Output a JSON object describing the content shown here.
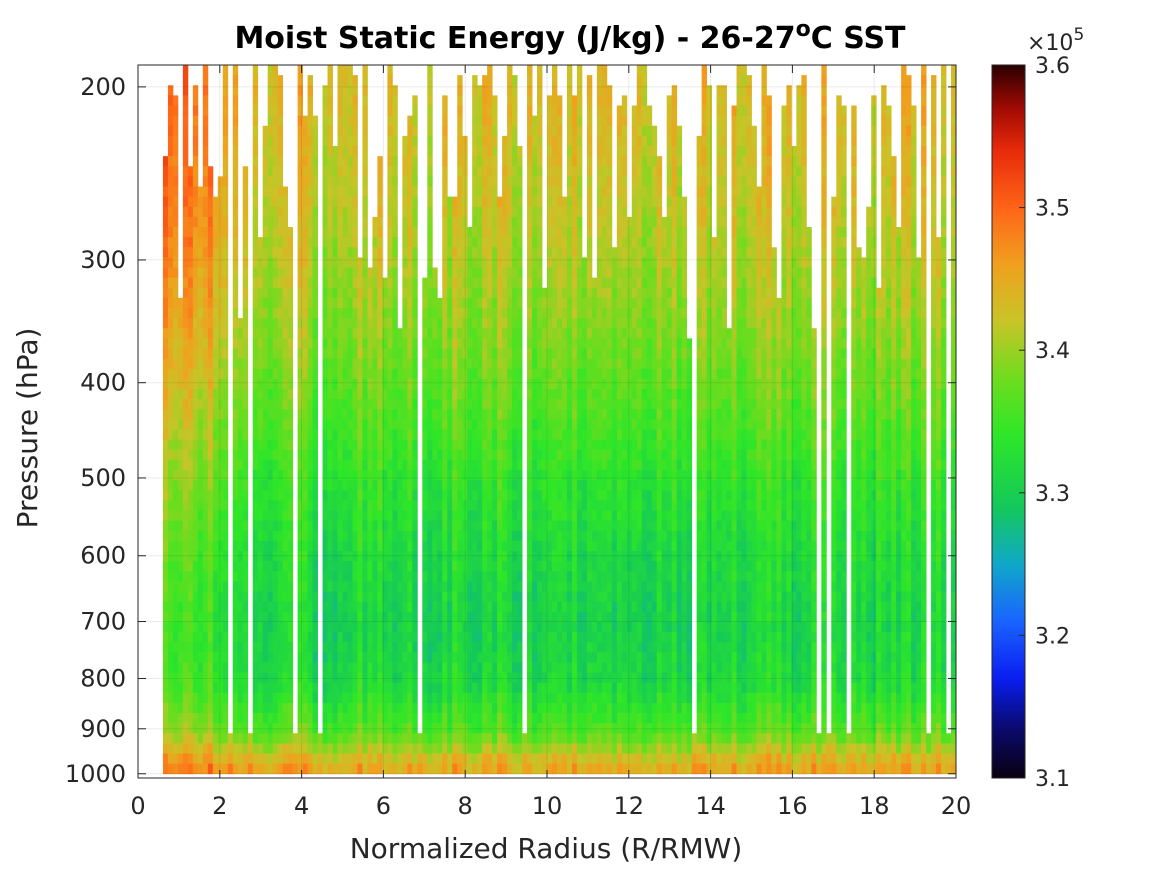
{
  "chart_data": {
    "type": "heatmap",
    "title": "Moist Static Energy (J/kg) - 26-27",
    "title_superscript": "o",
    "title_suffix": "C SST",
    "xlabel": "Normalized Radius (R/RMW)",
    "ylabel": "Pressure (hPa)",
    "xlim": [
      0,
      20
    ],
    "ylim": [
      190,
      1010
    ],
    "y_scale": "log",
    "y_reversed": true,
    "x_ticks": [
      0,
      2,
      4,
      6,
      8,
      10,
      12,
      14,
      16,
      18,
      20
    ],
    "y_ticks": [
      200,
      300,
      400,
      500,
      600,
      700,
      800,
      900,
      1000
    ],
    "colorbar": {
      "range": [
        310000,
        360000
      ],
      "ticks": [
        3.1,
        3.2,
        3.3,
        3.4,
        3.5,
        3.6
      ],
      "exponent_label": "×10",
      "exponent": "5",
      "colormap": "jet-like"
    },
    "grid": true,
    "field_description_profile": [
      {
        "pressure": 1000,
        "value": 347000
      },
      {
        "pressure": 950,
        "value": 343000
      },
      {
        "pressure": 900,
        "value": 337000
      },
      {
        "pressure": 800,
        "value": 332000
      },
      {
        "pressure": 700,
        "value": 331000
      },
      {
        "pressure": 600,
        "value": 332000
      },
      {
        "pressure": 500,
        "value": 334000
      },
      {
        "pressure": 400,
        "value": 337500
      },
      {
        "pressure": 300,
        "value": 341000
      },
      {
        "pressure": 200,
        "value": 344000
      }
    ],
    "inner_core_offset": 9000,
    "inner_core_radius": 3.5
  }
}
